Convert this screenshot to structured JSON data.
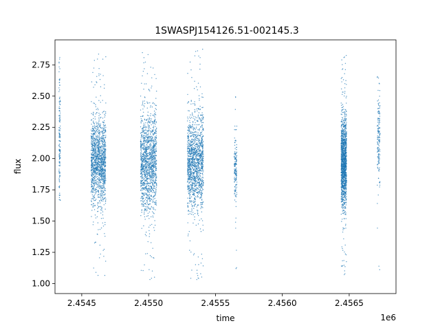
{
  "chart_data": {
    "type": "scatter",
    "title": "1SWASPJ154126.51-002145.3",
    "xlabel": "time",
    "ylabel": "flux",
    "x_offset_label": "1e6",
    "xlim": [
      2454300,
      2456850
    ],
    "ylim": [
      0.92,
      2.95
    ],
    "xticks": [
      2454500,
      2455000,
      2455500,
      2456000,
      2456500
    ],
    "xtick_labels": [
      "2.4545",
      "2.4550",
      "2.4555",
      "2.4560",
      "2.4565"
    ],
    "yticks": [
      1.0,
      1.25,
      1.5,
      1.75,
      2.0,
      2.25,
      2.5,
      2.75
    ],
    "ytick_labels": [
      "1.00",
      "1.25",
      "1.50",
      "1.75",
      "2.00",
      "2.25",
      "2.50",
      "2.75"
    ],
    "grid": false,
    "color": "#1f77b4",
    "observation_seasons": [
      {
        "x_start": 2454330,
        "x_end": 2454340,
        "y_center": 2.1,
        "y_spread": 0.35,
        "y_min": 1.64,
        "y_max": 2.89
      },
      {
        "x_start": 2454570,
        "x_end": 2454680,
        "y_center": 1.97,
        "y_spread": 0.17,
        "y_min": 1.06,
        "y_max": 2.84
      },
      {
        "x_start": 2454940,
        "x_end": 2455060,
        "y_center": 1.97,
        "y_spread": 0.19,
        "y_min": 1.01,
        "y_max": 2.89
      },
      {
        "x_start": 2455290,
        "x_end": 2455410,
        "y_center": 1.97,
        "y_spread": 0.19,
        "y_min": 1.01,
        "y_max": 2.88
      },
      {
        "x_start": 2455640,
        "x_end": 2455660,
        "y_center": 1.93,
        "y_spread": 0.12,
        "y_min": 1.09,
        "y_max": 2.8
      },
      {
        "x_start": 2456440,
        "x_end": 2456480,
        "y_center": 1.97,
        "y_spread": 0.17,
        "y_min": 1.05,
        "y_max": 2.83
      },
      {
        "x_start": 2456710,
        "x_end": 2456730,
        "y_center": 2.15,
        "y_spread": 0.2,
        "y_min": 1.07,
        "y_max": 2.88
      }
    ]
  }
}
